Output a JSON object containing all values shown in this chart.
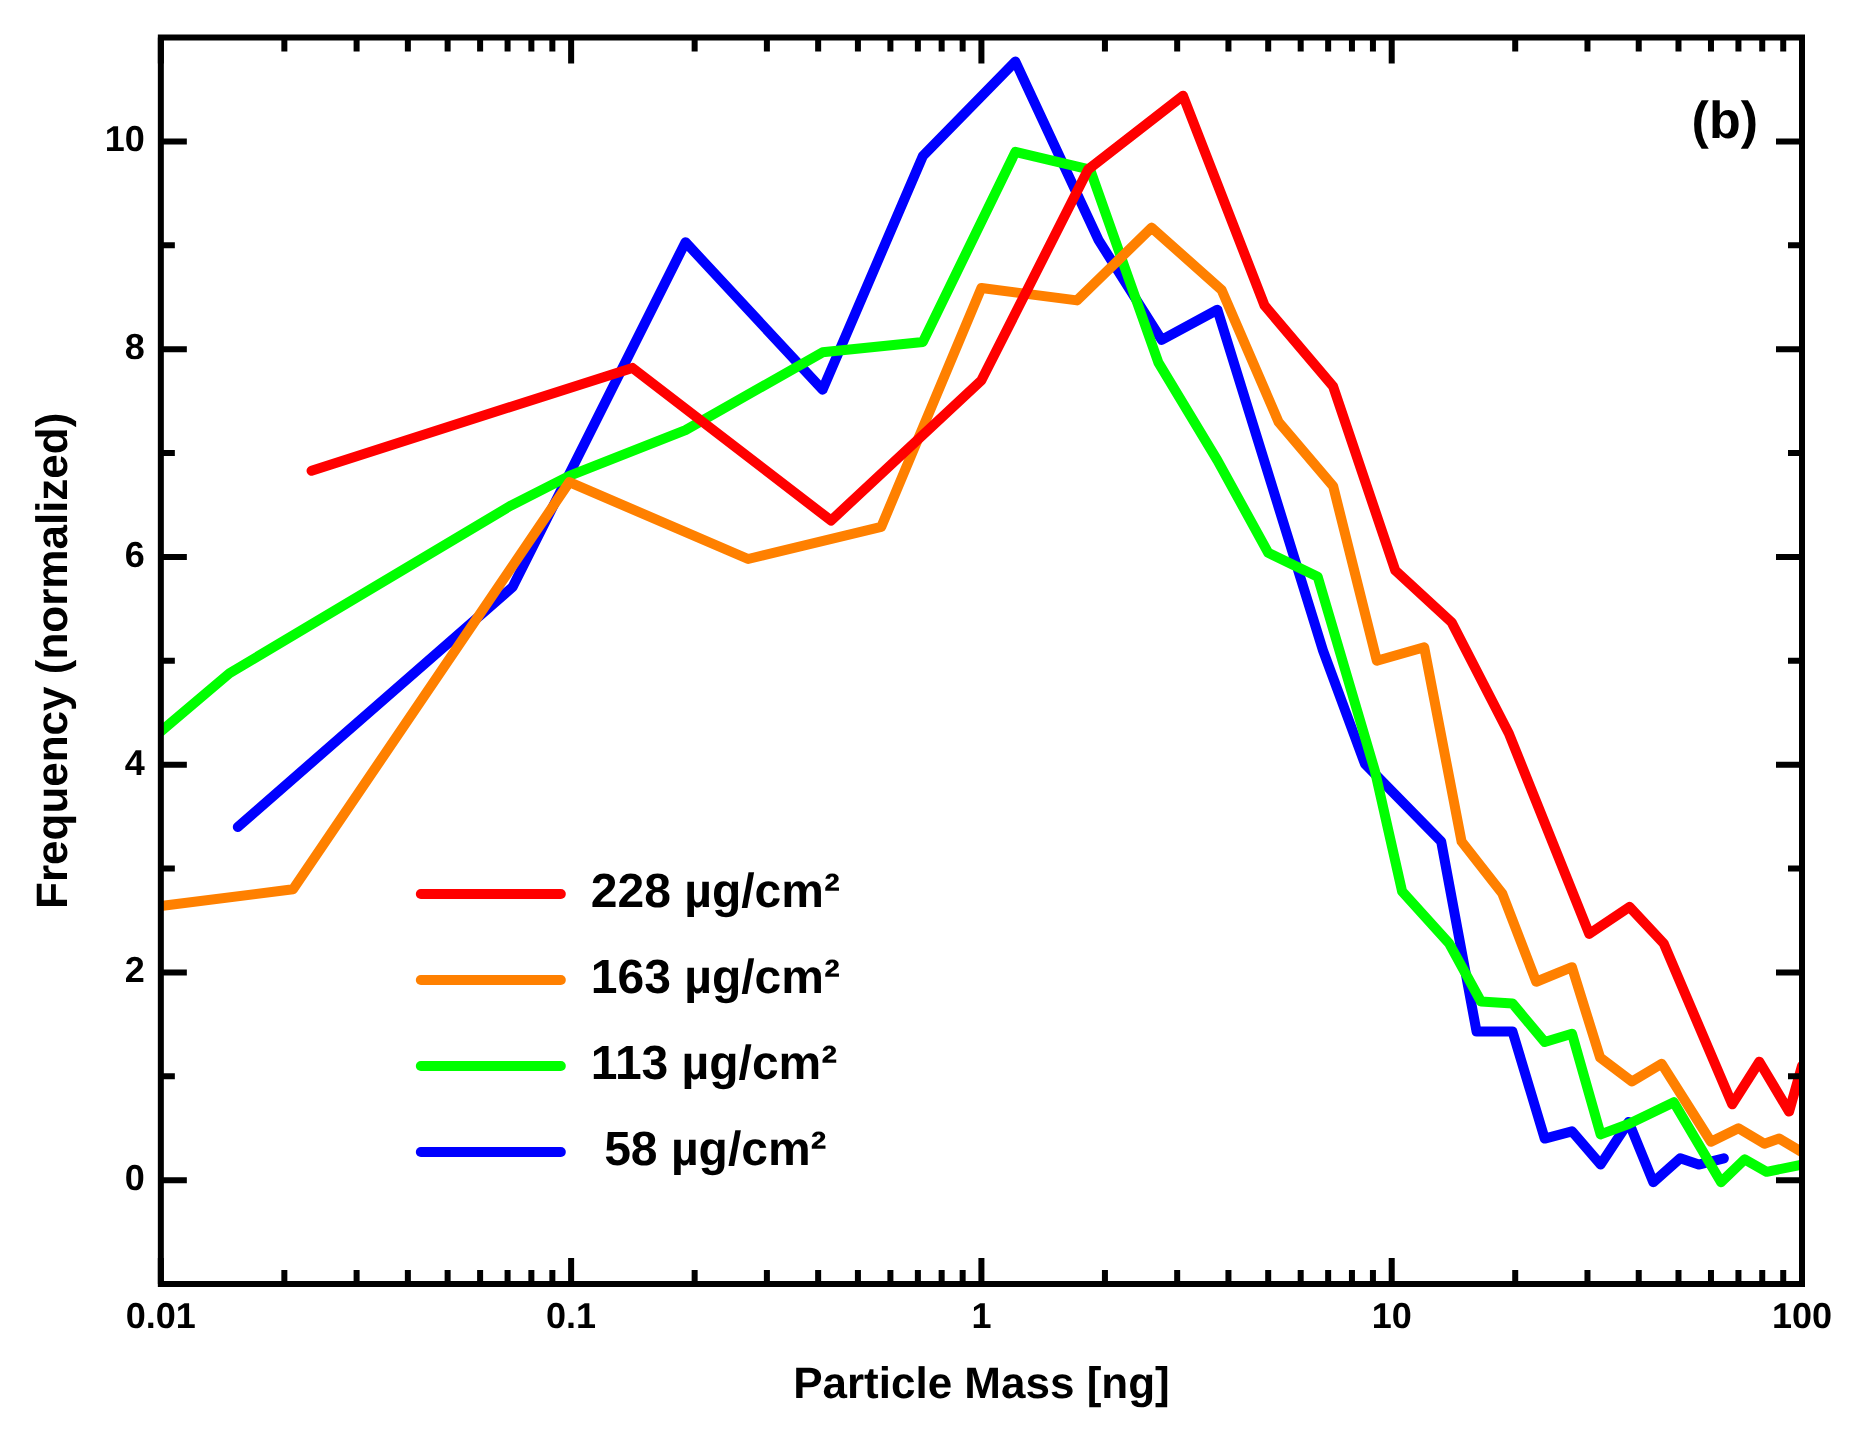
{
  "chart_data": {
    "type": "line",
    "xlabel": "Particle Mass [ng]",
    "ylabel": "Frequency (normalized)",
    "annotations": [
      "(b)"
    ],
    "log": "x",
    "grid": false,
    "legend": "bottom left",
    "marker": "none",
    "line_style": "solid",
    "xlim": [
      0.01,
      100
    ],
    "ylim": [
      -1,
      11
    ],
    "xticks": [
      0.01,
      {
        "value": 0.02,
        "label": null
      },
      {
        "value": 0.03,
        "label": null
      },
      {
        "value": 0.04,
        "label": null
      },
      {
        "value": 0.05,
        "label": null
      },
      {
        "value": 0.06,
        "label": null
      },
      {
        "value": 0.07,
        "label": null
      },
      {
        "value": 0.08,
        "label": null
      },
      {
        "value": 0.09,
        "label": null
      },
      0.1,
      {
        "value": 0.2,
        "label": null
      },
      {
        "value": 0.3,
        "label": null
      },
      {
        "value": 0.4,
        "label": null
      },
      {
        "value": 0.5,
        "label": null
      },
      {
        "value": 0.6,
        "label": null
      },
      {
        "value": 0.7,
        "label": null
      },
      {
        "value": 0.8,
        "label": null
      },
      {
        "value": 0.9,
        "label": null
      },
      1,
      {
        "value": 2,
        "label": null
      },
      {
        "value": 3,
        "label": null
      },
      {
        "value": 4,
        "label": null
      },
      {
        "value": 5,
        "label": null
      },
      {
        "value": 6,
        "label": null
      },
      {
        "value": 7,
        "label": null
      },
      {
        "value": 8,
        "label": null
      },
      {
        "value": 9,
        "label": null
      },
      10,
      {
        "value": 20,
        "label": null
      },
      {
        "value": 30,
        "label": null
      },
      {
        "value": 40,
        "label": null
      },
      {
        "value": 50,
        "label": null
      },
      {
        "value": 60,
        "label": null
      },
      {
        "value": 70,
        "label": null
      },
      {
        "value": 80,
        "label": null
      },
      {
        "value": 90,
        "label": null
      },
      100
    ],
    "yticks": [
      0,
      {
        "value": 1,
        "label": null
      },
      2,
      {
        "value": 3,
        "label": null
      },
      4,
      {
        "value": 5,
        "label": null
      },
      6,
      {
        "value": 7,
        "label": null
      },
      8,
      {
        "value": 9,
        "label": null
      },
      10
    ],
    "series": [
      {
        "name": "228 µg/cm²",
        "color": "#ff0000",
        "x": [
          0.0233,
          0.141,
          0.43,
          1.0,
          1.82,
          3.1,
          4.9,
          7.2,
          10.2,
          14,
          19.3,
          30.3,
          38,
          46,
          67.6,
          78.7,
          93,
          100
        ],
        "values": [
          6.83,
          7.82,
          6.35,
          7.7,
          9.73,
          10.44,
          8.42,
          7.64,
          5.87,
          5.37,
          4.3,
          2.37,
          2.63,
          2.28,
          0.73,
          1.14,
          0.66,
          1.1
        ]
      },
      {
        "name": "163 µg/cm²",
        "color": "#ff8000",
        "x": [
          0.01,
          0.021,
          0.099,
          0.27,
          0.57,
          1.0,
          1.71,
          2.6,
          3.85,
          5.3,
          7.2,
          9.2,
          12,
          14.8,
          18.6,
          22.5,
          27.5,
          32.2,
          38.5,
          45.5,
          60,
          70,
          81,
          88,
          100
        ],
        "values": [
          2.64,
          2.8,
          6.72,
          5.98,
          6.29,
          8.59,
          8.47,
          9.17,
          8.57,
          7.3,
          6.68,
          5.0,
          5.13,
          3.26,
          2.76,
          1.91,
          2.05,
          1.18,
          0.95,
          1.12,
          0.37,
          0.5,
          0.35,
          0.4,
          0.27
        ]
      },
      {
        "name": "113 µg/cm²",
        "color": "#00ff00",
        "x": [
          0.01,
          0.0147,
          0.071,
          0.099,
          0.19,
          0.41,
          0.72,
          1.21,
          1.84,
          2.7,
          3.76,
          5.0,
          6.6,
          9.1,
          10.6,
          13.8,
          16.5,
          19.7,
          23.6,
          27.5,
          32.3,
          37.8,
          48.7,
          63.5,
          72.5,
          82,
          100
        ],
        "values": [
          4.32,
          4.88,
          6.49,
          6.78,
          7.22,
          7.97,
          8.07,
          9.9,
          9.73,
          7.87,
          6.93,
          6.04,
          5.81,
          3.94,
          2.78,
          2.28,
          1.72,
          1.7,
          1.33,
          1.41,
          0.44,
          0.54,
          0.75,
          -0.02,
          0.2,
          0.08,
          0.15
        ]
      },
      {
        "name": " 58 µg/cm²",
        "color": "#0000ff",
        "x": [
          0.0154,
          0.072,
          0.19,
          0.41,
          0.72,
          1.21,
          1.93,
          2.75,
          3.76,
          6.8,
          8.6,
          13.2,
          16.1,
          19.7,
          23.6,
          27.5,
          32.3,
          37.8,
          43.4,
          50.5,
          56,
          64.5
        ],
        "values": [
          3.4,
          5.71,
          9.03,
          7.61,
          9.86,
          10.77,
          9.05,
          8.09,
          8.38,
          5.1,
          4.01,
          3.26,
          1.43,
          1.43,
          0.4,
          0.47,
          0.15,
          0.56,
          -0.02,
          0.21,
          0.15,
          0.21
        ]
      }
    ]
  }
}
